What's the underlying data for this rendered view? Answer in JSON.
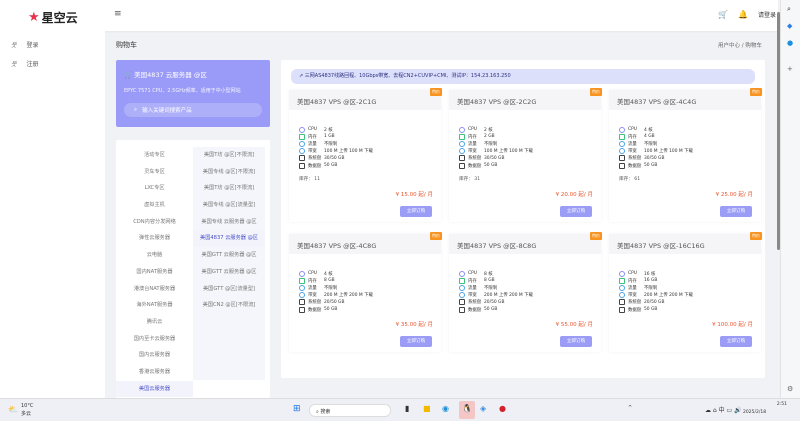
{
  "header": {
    "logo": "星空云",
    "menu_icon": "hamburger-icon",
    "login": "请登录"
  },
  "sidebar": {
    "items": [
      {
        "label": "登录",
        "icon": "user-icon"
      },
      {
        "label": "注册",
        "icon": "user-plus-icon"
      }
    ]
  },
  "page": {
    "title": "购物车",
    "breadcrumb": [
      "用户中心",
      "购物车"
    ]
  },
  "promo": {
    "title": "美国4837 云服务器 @区",
    "desc": "EPYC 7571 CPU、2.5GHz频率、适用于中小型网站",
    "search_placeholder": "输入关键词搜索产品"
  },
  "categories": {
    "left": [
      "活动专区",
      "灵车专区",
      "LXC专区",
      "虚拟主机",
      "CDN内容分发网络",
      "弹性云服务器",
      "云电脑",
      "国内NAT服务器",
      "港澳台NAT服务器",
      "海外NAT服务器",
      "腾讯云",
      "国内至卡云服务器",
      "国内云服务器",
      "香港云服务器",
      "美国云服务器"
    ],
    "left_active": 14,
    "right": [
      "美国T坊 @区[不限流]",
      "美国专线 @区[不限流]",
      "美国T坊 @区[不限流]",
      "美国专线 @区[流量型]",
      "美国专线 云服务器 @区",
      "美国4837 云服务器 @区",
      "美国GTT 云服务器 @区",
      "美国GTT 云服务器 @区",
      "美国GTT @区[流量型]",
      "美国CN2 @区[不限流]"
    ],
    "right_active": 5
  },
  "notice": "三网AS4837线路回程、10Gbps带宽、去程CN2+CUVIP+CMI、测试IP：154.23.163.250",
  "spec_labels": [
    "CPU",
    "内存",
    "流量",
    "带宽",
    "系统盘",
    "数据盘"
  ],
  "stock_label": "库存：",
  "buy_label": "立即订购",
  "badge": "特价",
  "products": [
    {
      "name": "美国4837 VPS @区-2C1G",
      "specs": [
        "2 核",
        "1 GB",
        "不限制",
        "100 M 上传 100 M 下载",
        "30/50 GB",
        "50 GB"
      ],
      "stock": "11",
      "price": "¥ 15.00 起/ 月"
    },
    {
      "name": "美国4837 VPS @区-2C2G",
      "specs": [
        "2 核",
        "2 GB",
        "不限制",
        "100 M 上传 100 M 下载",
        "30/50 GB",
        "50 GB"
      ],
      "stock": "31",
      "price": "¥ 20.00 起/ 月"
    },
    {
      "name": "美国4837 VPS @区-4C4G",
      "specs": [
        "4 核",
        "4 GB",
        "不限制",
        "100 M 上传 100 M 下载",
        "30/50 GB",
        "50 GB"
      ],
      "stock": "61",
      "price": "¥ 25.00 起/ 月"
    },
    {
      "name": "美国4837 VPS @区-4C8G",
      "specs": [
        "4 核",
        "8 GB",
        "不限制",
        "200 M 上传 200 M 下载",
        "20/50 GB",
        "50 GB"
      ],
      "price": "¥ 35.00 起/ 月"
    },
    {
      "name": "美国4837 VPS @区-8C8G",
      "specs": [
        "8 核",
        "8 GB",
        "不限制",
        "200 M 上传 200 M 下载",
        "20/50 GB",
        "50 GB"
      ],
      "price": "¥ 55.00 起/ 月"
    },
    {
      "name": "美国4837 VPS @区-16C16G",
      "specs": [
        "16 核",
        "16 GB",
        "不限制",
        "200 M 上传 200 M 下载",
        "20/50 GB",
        "50 GB"
      ],
      "price": "¥ 100.00 起/ 月"
    }
  ],
  "taskbar": {
    "weather": "10°C",
    "weather_desc": "多云",
    "search": "搜索",
    "time": "2:51",
    "date": "2025/2/18"
  },
  "colors": {
    "accent": "#9a9bf8",
    "badge": "#f7931e",
    "price": "#e8542b"
  }
}
